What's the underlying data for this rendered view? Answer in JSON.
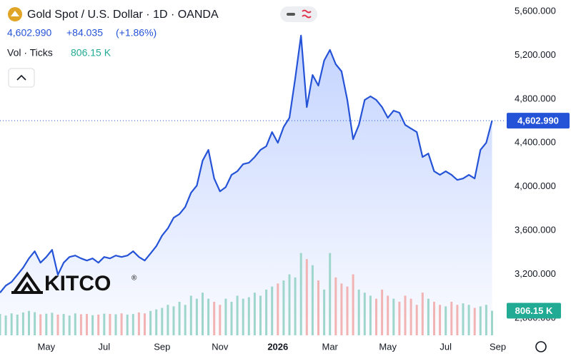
{
  "header": {
    "title": "Gold Spot / U.S. Dollar · 1D · OANDA",
    "change": "+84.035",
    "change_pct": "(+1.86%)",
    "volume_title": "Vol · Ticks",
    "watermark": "KITCO",
    "watermark_mark": "®"
  },
  "chart_data": {
    "type": "line",
    "grid": false,
    "categories": [
      null,
      null,
      null,
      null,
      null,
      null,
      null,
      null,
      "May",
      null,
      null,
      null,
      null,
      null,
      null,
      null,
      null,
      null,
      "Jul",
      null,
      null,
      null,
      null,
      null,
      null,
      null,
      null,
      null,
      "Sep",
      null,
      null,
      null,
      null,
      null,
      null,
      null,
      null,
      null,
      "Nov",
      null,
      null,
      null,
      null,
      null,
      null,
      null,
      null,
      null,
      "2026",
      null,
      null,
      null,
      null,
      null,
      null,
      null,
      null,
      "Mar",
      null,
      null,
      null,
      null,
      null,
      null,
      null,
      null,
      null,
      "May",
      null,
      null,
      null,
      null,
      null,
      null,
      null,
      null,
      null,
      "Jul",
      null,
      null,
      null,
      null,
      null,
      null,
      null,
      null,
      "Sep"
    ],
    "series": [
      {
        "name": "Gold Spot / U.S. Dollar",
        "color": "#2553d8",
        "values": [
          3033,
          3098,
          3131,
          3196,
          3261,
          3346,
          3411,
          3307,
          3359,
          3424,
          3196,
          3307,
          3359,
          3372,
          3346,
          3326,
          3346,
          3307,
          3359,
          3346,
          3372,
          3359,
          3372,
          3411,
          3359,
          3326,
          3391,
          3457,
          3554,
          3620,
          3717,
          3750,
          3815,
          3945,
          4010,
          4238,
          4336,
          4075,
          3958,
          3997,
          4108,
          4141,
          4206,
          4219,
          4271,
          4336,
          4369,
          4499,
          4401,
          4545,
          4629,
          4988,
          5379,
          4727,
          5020,
          4923,
          5151,
          5248,
          5118,
          5053,
          4792,
          4434,
          4564,
          4792,
          4825,
          4792,
          4727,
          4629,
          4694,
          4675,
          4564,
          4531,
          4499,
          4271,
          4303,
          4141,
          4108,
          4141,
          4108,
          4062,
          4075,
          4108,
          4075,
          4336,
          4401,
          4602.99,
          null
        ],
        "value_labels": [
          null,
          null,
          null,
          null,
          null,
          null,
          null,
          null,
          null,
          null,
          null,
          null,
          null,
          null,
          null,
          null,
          null,
          null,
          null,
          null,
          null,
          null,
          null,
          null,
          null,
          null,
          null,
          null,
          null,
          null,
          null,
          null,
          null,
          null,
          null,
          null,
          null,
          null,
          null,
          null,
          null,
          null,
          null,
          null,
          null,
          null,
          null,
          null,
          null,
          null,
          null,
          null,
          null,
          null,
          null,
          null,
          null,
          null,
          null,
          null,
          null,
          null,
          null,
          null,
          null,
          null,
          null,
          null,
          null,
          null,
          null,
          null,
          null,
          null,
          null,
          null,
          null,
          null,
          null,
          null,
          null,
          null,
          null,
          null,
          null,
          "4,602.990",
          null
        ]
      },
      {
        "name": "Vol",
        "color": "#22ab94",
        "axis": "y2",
        "values": [
          700,
          650,
          720,
          680,
          750,
          800,
          760,
          690,
          710,
          740,
          680,
          700,
          650,
          720,
          690,
          700,
          660,
          680,
          710,
          700,
          690,
          720,
          680,
          700,
          750,
          720,
          800,
          850,
          900,
          1000,
          950,
          1100,
          1000,
          1300,
          1200,
          1400,
          1200,
          1100,
          1000,
          1200,
          1100,
          1300,
          1200,
          1250,
          1400,
          1300,
          1500,
          1600,
          1700,
          1800,
          2000,
          1900,
          2700,
          2500,
          2300,
          1800,
          1500,
          2700,
          1900,
          1700,
          1600,
          2000,
          1500,
          1400,
          1300,
          1200,
          1500,
          1300,
          1200,
          1100,
          1300,
          1200,
          1000,
          1400,
          1200,
          1100,
          1000,
          950,
          1100,
          1000,
          1050,
          1000,
          900,
          950,
          1000,
          806.15,
          null
        ],
        "value_labels": [
          null,
          null,
          null,
          null,
          null,
          null,
          null,
          null,
          null,
          null,
          null,
          null,
          null,
          null,
          null,
          null,
          null,
          null,
          null,
          null,
          null,
          null,
          null,
          null,
          null,
          null,
          null,
          null,
          null,
          null,
          null,
          null,
          null,
          null,
          null,
          null,
          null,
          null,
          null,
          null,
          null,
          null,
          null,
          null,
          null,
          null,
          null,
          null,
          null,
          null,
          null,
          null,
          null,
          null,
          null,
          null,
          null,
          null,
          null,
          null,
          null,
          null,
          null,
          null,
          null,
          null,
          null,
          null,
          null,
          null,
          null,
          null,
          null,
          null,
          null,
          null,
          null,
          null,
          null,
          null,
          null,
          null,
          null,
          null,
          null,
          "806.15 K",
          null
        ]
      }
    ],
    "ylim": [
      2644,
      5704
    ],
    "yticks": [
      {
        "value": 2800,
        "label": "2,800.000"
      },
      {
        "value": 3200,
        "label": "3,200.000"
      },
      {
        "value": 3600,
        "label": "3,600.000"
      },
      {
        "value": 4000,
        "label": "4,000.000"
      },
      {
        "value": 4400,
        "label": "4,400.000"
      },
      {
        "value": 4800,
        "label": "4,800.000"
      },
      {
        "value": 5200,
        "label": "5,200.000"
      },
      {
        "value": 5600,
        "label": "5,600.000"
      }
    ],
    "y2lim": [
      0,
      11000
    ]
  }
}
